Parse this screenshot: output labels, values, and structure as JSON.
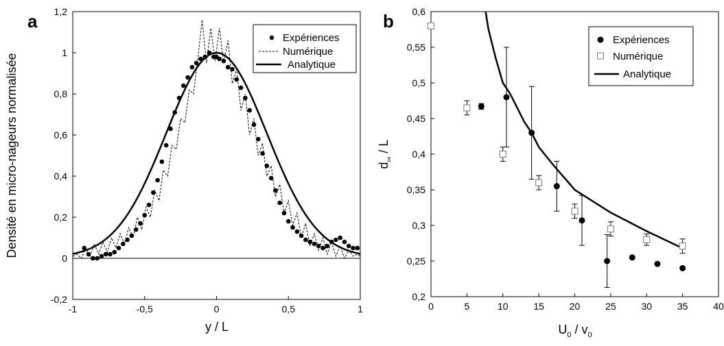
{
  "chart_data": [
    {
      "panel_label": "a",
      "type": "line",
      "xlabel": "y / L",
      "ylabel": "Densité en micro-nageurs normalisée",
      "xlim": [
        -1,
        1
      ],
      "ylim": [
        -0.2,
        1.2
      ],
      "xticks": [
        "-1",
        "-0,5",
        "0",
        "0,5",
        "1"
      ],
      "yticks": [
        "-0,2",
        "0",
        "0,2",
        "0,4",
        "0,6",
        "0,8",
        "1",
        "1,2"
      ],
      "legend_position": "top-right",
      "series": [
        {
          "name": "Expériences",
          "style": "markers",
          "x": [
            -0.92,
            -0.89,
            -0.86,
            -0.83,
            -0.8,
            -0.77,
            -0.74,
            -0.71,
            -0.68,
            -0.65,
            -0.62,
            -0.59,
            -0.56,
            -0.53,
            -0.5,
            -0.47,
            -0.44,
            -0.41,
            -0.38,
            -0.35,
            -0.32,
            -0.29,
            -0.26,
            -0.23,
            -0.2,
            -0.17,
            -0.14,
            -0.11,
            -0.08,
            -0.05,
            -0.02,
            0.0,
            0.02,
            0.05,
            0.08,
            0.11,
            0.14,
            0.17,
            0.2,
            0.23,
            0.26,
            0.29,
            0.32,
            0.35,
            0.38,
            0.41,
            0.44,
            0.47,
            0.5,
            0.53,
            0.56,
            0.59,
            0.62,
            0.65,
            0.68,
            0.71,
            0.74,
            0.77,
            0.8,
            0.83,
            0.86,
            0.89,
            0.92,
            0.95,
            0.98
          ],
          "y": [
            0.05,
            0.02,
            0.0,
            0.0,
            0.01,
            0.02,
            0.02,
            0.03,
            0.05,
            0.07,
            0.09,
            0.11,
            0.14,
            0.17,
            0.21,
            0.26,
            0.32,
            0.38,
            0.47,
            0.55,
            0.63,
            0.71,
            0.78,
            0.84,
            0.88,
            0.93,
            0.95,
            0.97,
            0.98,
            1.0,
            0.98,
            0.98,
            0.97,
            0.96,
            0.93,
            0.92,
            0.87,
            0.83,
            0.78,
            0.72,
            0.65,
            0.58,
            0.51,
            0.45,
            0.39,
            0.33,
            0.27,
            0.22,
            0.18,
            0.15,
            0.13,
            0.11,
            0.09,
            0.08,
            0.07,
            0.06,
            0.05,
            0.06,
            0.08,
            0.09,
            0.1,
            0.08,
            0.06,
            0.05,
            0.05
          ]
        },
        {
          "name": "Numérique",
          "style": "dashed",
          "x": [
            -1.0,
            -0.97,
            -0.94,
            -0.91,
            -0.88,
            -0.85,
            -0.82,
            -0.79,
            -0.76,
            -0.73,
            -0.7,
            -0.67,
            -0.64,
            -0.61,
            -0.58,
            -0.55,
            -0.52,
            -0.49,
            -0.46,
            -0.43,
            -0.4,
            -0.37,
            -0.34,
            -0.31,
            -0.28,
            -0.25,
            -0.22,
            -0.19,
            -0.16,
            -0.13,
            -0.1,
            -0.07,
            -0.04,
            -0.01,
            0.02,
            0.05,
            0.08,
            0.11,
            0.14,
            0.17,
            0.2,
            0.23,
            0.26,
            0.29,
            0.32,
            0.35,
            0.38,
            0.41,
            0.44,
            0.47,
            0.5,
            0.53,
            0.56,
            0.59,
            0.62,
            0.65,
            0.68,
            0.71,
            0.74,
            0.77,
            0.8,
            0.83,
            0.86,
            0.89,
            0.92,
            0.95,
            0.98,
            1.0
          ],
          "y": [
            0.01,
            0.02,
            0.0,
            0.05,
            0.01,
            0.07,
            0.02,
            0.08,
            0.03,
            0.1,
            0.05,
            0.12,
            0.07,
            0.15,
            0.1,
            0.2,
            0.14,
            0.25,
            0.2,
            0.33,
            0.28,
            0.43,
            0.4,
            0.55,
            0.53,
            0.68,
            0.66,
            0.82,
            0.8,
            0.97,
            1.16,
            0.95,
            1.12,
            0.96,
            1.12,
            0.95,
            1.06,
            0.85,
            0.92,
            0.72,
            0.8,
            0.6,
            0.68,
            0.5,
            0.56,
            0.4,
            0.45,
            0.3,
            0.36,
            0.22,
            0.28,
            0.16,
            0.22,
            0.1,
            0.17,
            0.06,
            0.12,
            0.04,
            0.1,
            0.02,
            0.08,
            0.01,
            0.06,
            0.0,
            0.04,
            0.01,
            0.02,
            0.01
          ]
        },
        {
          "name": "Analytique",
          "style": "solid",
          "x": [
            -1.0,
            -0.9,
            -0.8,
            -0.7,
            -0.6,
            -0.5,
            -0.4,
            -0.3,
            -0.2,
            -0.1,
            0.0,
            0.1,
            0.2,
            0.3,
            0.4,
            0.5,
            0.6,
            0.7,
            0.8,
            0.9,
            1.0
          ],
          "y": [
            0.01,
            0.025,
            0.055,
            0.1,
            0.18,
            0.28,
            0.43,
            0.61,
            0.8,
            0.95,
            1.0,
            0.95,
            0.8,
            0.61,
            0.43,
            0.28,
            0.18,
            0.1,
            0.055,
            0.025,
            0.01
          ]
        }
      ]
    },
    {
      "panel_label": "b",
      "type": "scatter",
      "xlabel_main": "U",
      "xlabel_sub1": "0",
      "xlabel_sep": " / v",
      "xlabel_sub2": "0",
      "ylabel_main": "d",
      "ylabel_sub": "∞",
      "ylabel_tail": " / L",
      "xlim": [
        0,
        40
      ],
      "ylim": [
        0.2,
        0.6
      ],
      "xticks": [
        "0",
        "5",
        "10",
        "15",
        "20",
        "25",
        "30",
        "35",
        "40"
      ],
      "yticks": [
        "0,2",
        "0,25",
        "0,3",
        "0,35",
        "0,4",
        "0,45",
        "0,5",
        "0,55",
        "0,6"
      ],
      "legend_position": "top-right",
      "series": [
        {
          "name": "Expériences",
          "style": "filled-circle",
          "x": [
            7,
            10.5,
            14,
            17.5,
            21,
            24.5,
            28,
            31.5,
            35
          ],
          "y": [
            0.467,
            0.48,
            0.43,
            0.355,
            0.307,
            0.25,
            0.255,
            0.246,
            0.24
          ],
          "err": [
            0.004,
            0.07,
            0.065,
            0.035,
            0.035,
            0.037,
            0,
            0,
            0
          ]
        },
        {
          "name": "Numérique",
          "style": "open-square",
          "x": [
            0,
            5,
            10,
            15,
            20,
            25,
            30,
            35
          ],
          "y": [
            0.58,
            0.465,
            0.4,
            0.36,
            0.32,
            0.295,
            0.28,
            0.271
          ],
          "err": [
            0,
            0.01,
            0.01,
            0.01,
            0.01,
            0.01,
            0.008,
            0.01
          ]
        },
        {
          "name": "Analytique",
          "style": "solid",
          "x": [
            7.6,
            8,
            9,
            10,
            11,
            12,
            13,
            14,
            15,
            17,
            20,
            25,
            30,
            35
          ],
          "y": [
            0.6,
            0.575,
            0.535,
            0.5,
            0.485,
            0.465,
            0.445,
            0.43,
            0.41,
            0.385,
            0.35,
            0.318,
            0.292,
            0.268
          ]
        }
      ]
    }
  ]
}
